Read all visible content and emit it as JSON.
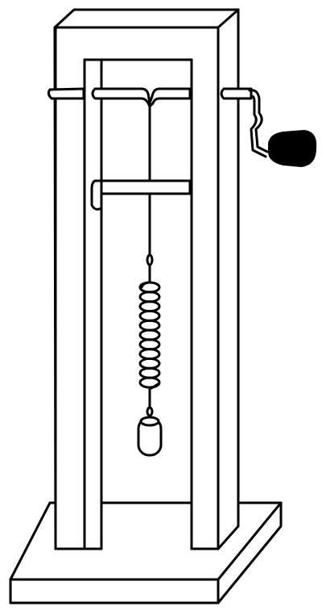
{
  "figure": {
    "subject": "spring-pendulum-apparatus",
    "colors": {
      "stroke": "#000000",
      "background": "#ffffff",
      "knob": "#000000"
    },
    "parts": [
      {
        "name": "base-plate"
      },
      {
        "name": "left-upright"
      },
      {
        "name": "right-upright"
      },
      {
        "name": "top-crossbar"
      },
      {
        "name": "axle-rod"
      },
      {
        "name": "hand-crank"
      },
      {
        "name": "crank-knob"
      },
      {
        "name": "support-shelf"
      },
      {
        "name": "thread"
      },
      {
        "name": "coil-spring",
        "turns": 11
      },
      {
        "name": "hanging-weight"
      }
    ]
  }
}
